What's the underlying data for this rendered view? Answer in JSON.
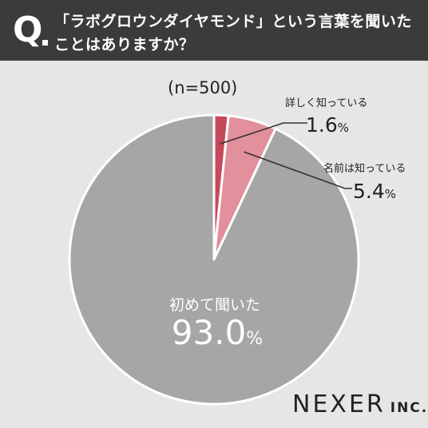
{
  "header": {
    "q_mark": "Q",
    "question_line1": "「ラボグロウンダイヤモンド」という言葉を聞いた",
    "question_line2": "ことはありますか？"
  },
  "sample_size": "(n=500)",
  "brand": {
    "name": "NEXER",
    "suffix": "INC."
  },
  "colors": {
    "header_bg": "#3b3b3b",
    "background": "#e6e6e6",
    "detailed": "#c54a5c",
    "name_only": "#e2909b",
    "first_time": "#a6a6a6"
  },
  "chart_data": {
    "type": "pie",
    "unit": "%",
    "slices": [
      {
        "label": "詳しく知っている",
        "value": 1.6,
        "display": "1.6",
        "color": "#c54a5c"
      },
      {
        "label": "名前は知っている",
        "value": 5.4,
        "display": "5.4",
        "color": "#e2909b"
      },
      {
        "label": "初めて聞いた",
        "value": 93.0,
        "display": "93.0",
        "color": "#a6a6a6"
      }
    ]
  }
}
